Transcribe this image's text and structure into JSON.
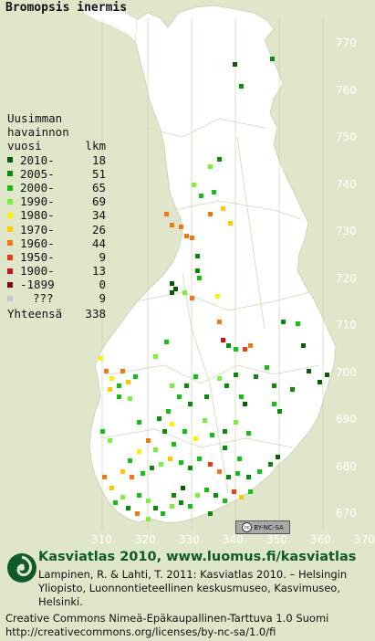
{
  "title": "Bromopsis inermis",
  "legend": {
    "heading": [
      "Uusimman",
      "havainnon",
      "vuosi"
    ],
    "count_header": "lkm",
    "rows": [
      {
        "label": "2010-",
        "count": "18",
        "color": "#0a5a0a"
      },
      {
        "label": "2005-",
        "count": "51",
        "color": "#0b8a0b"
      },
      {
        "label": "2000-",
        "count": "65",
        "color": "#14c014"
      },
      {
        "label": "1990-",
        "count": "69",
        "color": "#7cf03c"
      },
      {
        "label": "1980-",
        "count": "34",
        "color": "#fff000"
      },
      {
        "label": "1970-",
        "count": "26",
        "color": "#ffc800"
      },
      {
        "label": "1960-",
        "count": "44",
        "color": "#f07814"
      },
      {
        "label": "1950-",
        "count": "9",
        "color": "#e83c14"
      },
      {
        "label": "1900-",
        "count": "13",
        "color": "#c81414"
      },
      {
        "label": "-1899",
        "count": "0",
        "color": "#780a0a"
      },
      {
        "label": "???",
        "count": "9",
        "color": "#c8c8c8"
      }
    ],
    "total_label": "Yhteensä",
    "total_count": "338"
  },
  "y_ticks": [
    "770",
    "760",
    "750",
    "740",
    "730",
    "720",
    "710",
    "700",
    "690",
    "680",
    "670"
  ],
  "x_ticks": [
    "310",
    "320",
    "330",
    "340",
    "350",
    "360",
    "370"
  ],
  "license_badge": "BY-NC-SA",
  "footer": {
    "title": "Kasviatlas 2010, www.luomus.fi/kasviatlas",
    "citation": "Lampinen, R. & Lahti, T. 2011: Kasviatlas 2010. – Helsingin Yliopisto, Luonnontieteellinen keskusmuseo, Kasvimuseo, Helsinki.",
    "license_line1": "Creative Commons Nimeä-Epäkaupallinen-Tarttuva 1.0 Suomi",
    "license_line2": "http://creativecommons.org/licenses/by-nc-sa/1.0/fi"
  },
  "colors": {
    "background": "#dfe6c9",
    "land": "#ffffff",
    "grid": "#b8c0a0",
    "footer_title": "#0f5a2d"
  }
}
